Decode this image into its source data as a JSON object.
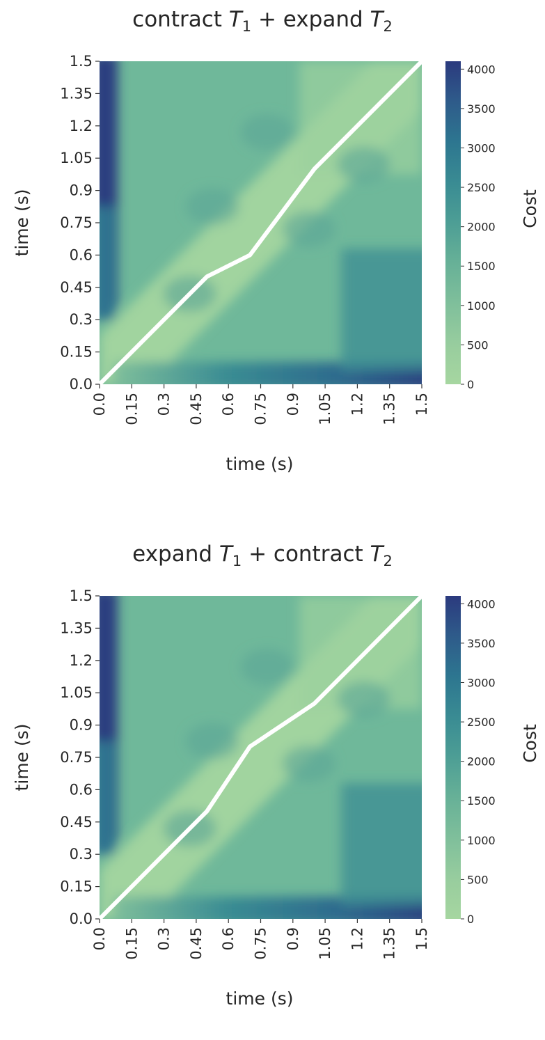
{
  "chart_data": [
    {
      "type": "heatmap",
      "title": {
        "prefix": "contract ",
        "t1": "T",
        "t1_sub": "1",
        "middle": " + expand ",
        "t2": "T",
        "t2_sub": "2"
      },
      "xlabel": "time (s)",
      "ylabel": "time (s)",
      "x_ticks": [
        "0.0",
        "0.15",
        "0.3",
        "0.45",
        "0.6",
        "0.75",
        "0.9",
        "1.05",
        "1.2",
        "1.35",
        "1.5"
      ],
      "y_ticks": [
        "0.0",
        "0.15",
        "0.3",
        "0.45",
        "0.6",
        "0.75",
        "0.9",
        "1.05",
        "1.2",
        "1.35",
        "1.5"
      ],
      "xlim": [
        0,
        1.5
      ],
      "ylim": [
        0,
        1.5
      ],
      "colorbar": {
        "label": "Cost",
        "ticks": [
          "0",
          "500",
          "1000",
          "1500",
          "2000",
          "2500",
          "3000",
          "3500",
          "4000"
        ],
        "range": [
          0,
          4100
        ],
        "colormap": "crest"
      },
      "path": {
        "color": "#ffffff",
        "x": [
          0.0,
          0.5,
          0.7,
          1.0,
          1.5
        ],
        "y": [
          0.0,
          0.5,
          0.6,
          1.0,
          1.5
        ]
      }
    },
    {
      "type": "heatmap",
      "title": {
        "prefix": "expand ",
        "t1": "T",
        "t1_sub": "1",
        "middle": " + contract ",
        "t2": "T",
        "t2_sub": "2"
      },
      "xlabel": "time (s)",
      "ylabel": "time (s)",
      "x_ticks": [
        "0.0",
        "0.15",
        "0.3",
        "0.45",
        "0.6",
        "0.75",
        "0.9",
        "1.05",
        "1.2",
        "1.35",
        "1.5"
      ],
      "y_ticks": [
        "0.0",
        "0.15",
        "0.3",
        "0.45",
        "0.6",
        "0.75",
        "0.9",
        "1.05",
        "1.2",
        "1.35",
        "1.5"
      ],
      "xlim": [
        0,
        1.5
      ],
      "ylim": [
        0,
        1.5
      ],
      "colorbar": {
        "label": "Cost",
        "ticks": [
          "0",
          "500",
          "1000",
          "1500",
          "2000",
          "2500",
          "3000",
          "3500",
          "4000"
        ],
        "range": [
          0,
          4100
        ],
        "colormap": "crest"
      },
      "path": {
        "color": "#ffffff",
        "x": [
          0.0,
          0.5,
          0.7,
          1.0,
          1.5
        ],
        "y": [
          0.0,
          0.5,
          0.8,
          1.0,
          1.5
        ]
      }
    }
  ]
}
